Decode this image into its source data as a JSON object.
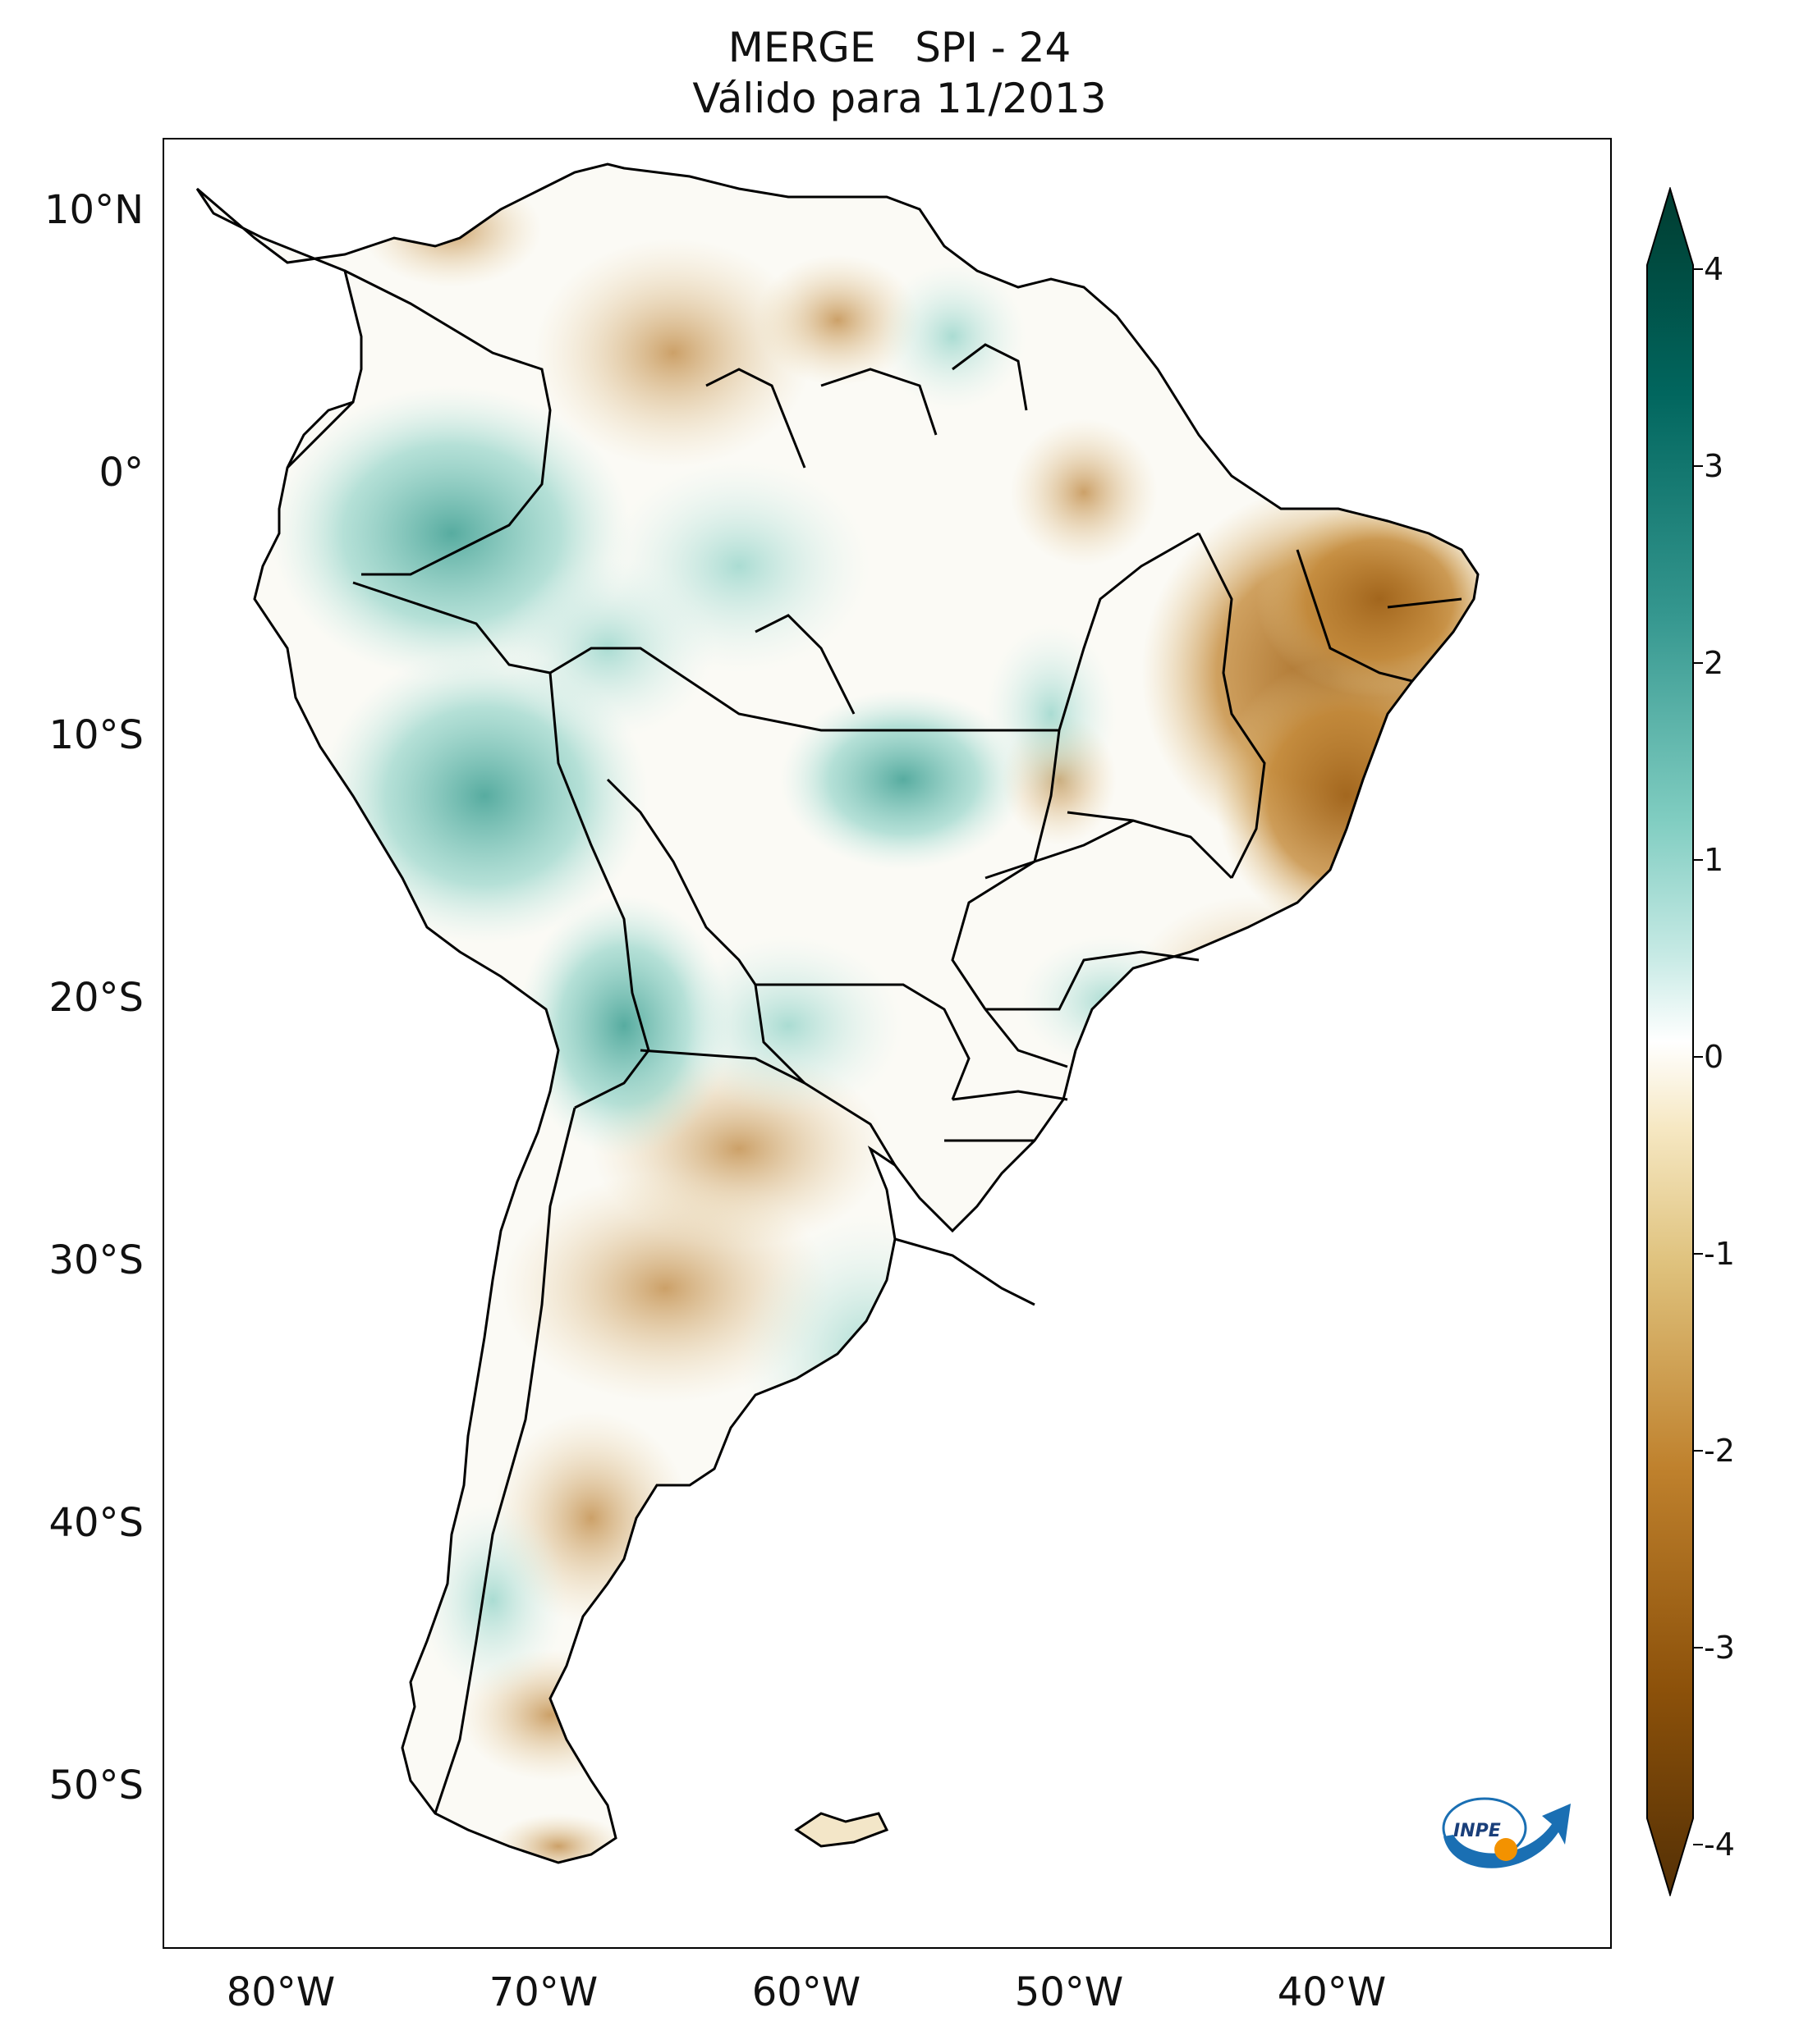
{
  "title": {
    "line1": "MERGE   SPI - 24",
    "line2": "Válido para 11/2013"
  },
  "map": {
    "lat_labels": [
      "10°N",
      "0°",
      "10°S",
      "20°S",
      "30°S",
      "40°S",
      "50°S"
    ],
    "lon_labels": [
      "80°W",
      "70°W",
      "60°W",
      "50°W",
      "40°W"
    ],
    "lon_range": [
      -85,
      -30
    ],
    "lat_range": [
      -56,
      13
    ]
  },
  "colorbar": {
    "ticks": [
      "4",
      "3",
      "2",
      "1",
      "0",
      "-1",
      "-2",
      "-3",
      "-4"
    ],
    "range": [
      -4,
      4
    ],
    "colors": [
      "#543005",
      "#8c510a",
      "#bf812d",
      "#dfc27d",
      "#f6e8c3",
      "#ffffff",
      "#c7eae5",
      "#80cdc1",
      "#35978f",
      "#01665e",
      "#003c30"
    ]
  },
  "logo": {
    "text": "INPE",
    "icon": "inpe-logo-icon"
  }
}
